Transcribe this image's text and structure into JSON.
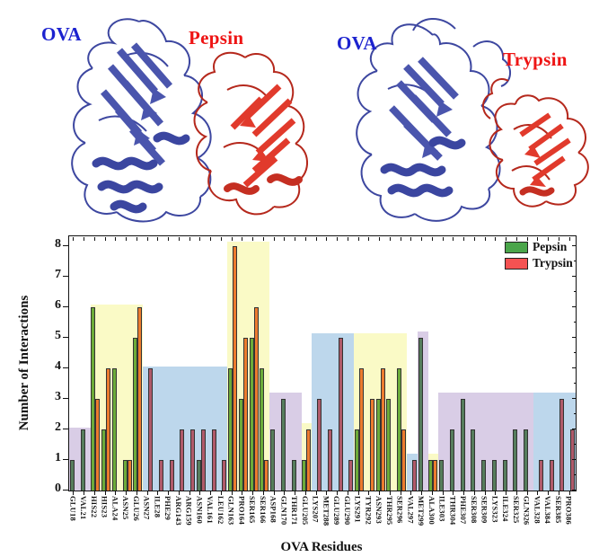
{
  "panels": [
    {
      "protein_label": "OVA",
      "enzyme_label": "Pepsin",
      "protein_label_color": "#1c22cf",
      "enzyme_label_color": "#ee1414",
      "protein_color": "#4a55ad",
      "enzyme_color": "#e13a2c"
    },
    {
      "protein_label": "OVA",
      "enzyme_label": "Trypsin",
      "protein_label_color": "#1c22cf",
      "enzyme_label_color": "#ee1414",
      "protein_color": "#4a55ad",
      "enzyme_color": "#e13a2c"
    }
  ],
  "chart_data": {
    "type": "bar",
    "title": "",
    "xlabel": "OVA Residues",
    "ylabel": "Number of Interactions",
    "ylim": [
      0,
      8.3
    ],
    "yticks": [
      0,
      1,
      2,
      3,
      4,
      5,
      6,
      7,
      8
    ],
    "grid": false,
    "legend_position": "top-right",
    "legend": [
      {
        "label": "Pepsin",
        "color": "#4aa54a"
      },
      {
        "label": "Trypsin",
        "color": "#f45252"
      }
    ],
    "categories": [
      "GLU18",
      "VAL21",
      "HIS22",
      "HIS23",
      "ALA24",
      "ASN25",
      "GLU26",
      "ASN27",
      "ILE28",
      "PHE29",
      "ARG143",
      "ARG159",
      "ASN160",
      "VAL161",
      "LEU162",
      "GLN163",
      "PRO164",
      "SER165",
      "SER166",
      "ASP168",
      "GLN170",
      "THR171",
      "GLU205",
      "LYS207",
      "MET288",
      "GLU289",
      "GLU290",
      "LYS291",
      "TYR292",
      "ASN293",
      "THR295",
      "SER296",
      "VAL297",
      "MET299",
      "ALA300",
      "ILE303",
      "THR304",
      "PHE307",
      "SER308",
      "SER309",
      "LYS323",
      "ILE324",
      "SER325",
      "GLN326",
      "VAL328",
      "VAL384",
      "SER385",
      "PRO386"
    ],
    "series": [
      {
        "name": "Pepsin",
        "values": [
          1,
          2,
          6,
          2,
          4,
          1,
          5,
          0,
          0,
          0,
          0,
          0,
          1,
          0,
          0,
          4,
          3,
          5,
          4,
          2,
          3,
          1,
          1,
          0,
          0,
          0,
          0,
          2,
          0,
          3,
          3,
          4,
          0,
          5,
          1,
          1,
          2,
          3,
          2,
          1,
          1,
          1,
          2,
          2,
          0,
          0,
          0,
          0
        ]
      },
      {
        "name": "Trypsin",
        "values": [
          0,
          0,
          3,
          4,
          0,
          1,
          6,
          4,
          1,
          1,
          2,
          2,
          2,
          2,
          1,
          8,
          5,
          6,
          1,
          0,
          0,
          0,
          2,
          3,
          2,
          5,
          1,
          4,
          3,
          4,
          0,
          2,
          1,
          0,
          1,
          0,
          0,
          0,
          0,
          0,
          0,
          0,
          0,
          0,
          1,
          1,
          3,
          2
        ]
      }
    ],
    "highlight_regions": [
      {
        "start": 0,
        "end": 1,
        "height": 2.05,
        "color": "lavender"
      },
      {
        "start": 2,
        "end": 6,
        "height": 6.1,
        "color": "yellow"
      },
      {
        "start": 7,
        "end": 14,
        "height": 4.05,
        "color": "blue"
      },
      {
        "start": 15,
        "end": 18,
        "height": 8.15,
        "color": "yellow"
      },
      {
        "start": 19,
        "end": 21,
        "height": 3.2,
        "color": "lavender"
      },
      {
        "start": 22,
        "end": 22,
        "height": 2.2,
        "color": "yellow"
      },
      {
        "start": 23,
        "end": 26,
        "height": 5.15,
        "color": "blue"
      },
      {
        "start": 27,
        "end": 31,
        "height": 5.15,
        "color": "yellow"
      },
      {
        "start": 32,
        "end": 32,
        "height": 1.2,
        "color": "blue"
      },
      {
        "start": 33,
        "end": 33,
        "height": 5.2,
        "color": "lavender"
      },
      {
        "start": 34,
        "end": 34,
        "height": 1.2,
        "color": "yellow"
      },
      {
        "start": 35,
        "end": 43,
        "height": 3.2,
        "color": "lavender"
      },
      {
        "start": 44,
        "end": 47,
        "height": 3.2,
        "color": "blue"
      }
    ],
    "palette": {
      "region_colors": {
        "yellow": "#fafac6",
        "blue": "#bdd7ec",
        "lavender": "#d9cde6"
      },
      "bar_bright": {
        "Pepsin": "#6cab3a",
        "Trypsin": "#ec7b2e"
      },
      "bar_dark": {
        "Pepsin": "#567d5c",
        "Trypsin": "#b05a6a"
      },
      "bar_border": "#333333"
    }
  }
}
